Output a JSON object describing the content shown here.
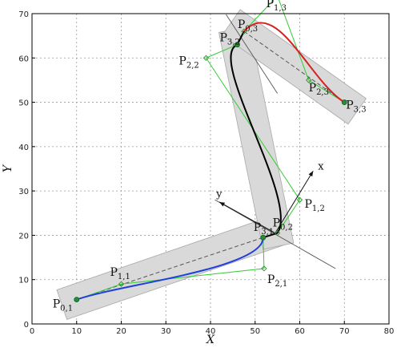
{
  "chart_data": {
    "type": "line",
    "title": "",
    "xlabel": "X",
    "ylabel": "Y",
    "xlim": [
      0,
      80
    ],
    "ylim": [
      0,
      70
    ],
    "xticks": [
      0,
      10,
      20,
      30,
      40,
      50,
      60,
      70,
      80
    ],
    "yticks": [
      0,
      10,
      20,
      30,
      40,
      50,
      60,
      70
    ],
    "grid": true,
    "colors": {
      "band": "#d9d9d9",
      "control_polygon": "#33cc33",
      "segment1": "#1f3fdc",
      "segment2": "#000000",
      "segment3": "#d42020",
      "chord": "#555555",
      "frame_lines": "#555555"
    },
    "bands": [
      {
        "name": "band-1",
        "centerline": [
          [
            10,
            5.5
          ],
          [
            52,
            20
          ]
        ],
        "half_width": 3.5
      },
      {
        "name": "band-2",
        "centerline": [
          [
            46,
            63
          ],
          [
            54.5,
            21
          ]
        ],
        "half_width": 3.5
      },
      {
        "name": "band-3",
        "centerline": [
          [
            47.5,
            66
          ],
          [
            70,
            50
          ]
        ],
        "half_width": 3.5
      }
    ],
    "segments": [
      {
        "name": "segment-1",
        "control_points": [
          [
            10,
            5.5
          ],
          [
            20,
            9
          ],
          [
            52,
            12.5
          ],
          [
            51.8,
            19.5
          ]
        ]
      },
      {
        "name": "segment-2",
        "control_points": [
          [
            55,
            20.5
          ],
          [
            60,
            28
          ],
          [
            39,
            60
          ],
          [
            46,
            63
          ]
        ]
      },
      {
        "name": "segment-3",
        "control_points": [
          [
            47.5,
            66
          ],
          [
            55,
            74
          ],
          [
            62,
            55
          ],
          [
            70,
            50
          ]
        ]
      }
    ],
    "chords": [
      [
        [
          10,
          5.5
        ],
        [
          51.8,
          19.5
        ]
      ],
      [
        [
          47.5,
          66
        ],
        [
          70,
          50
        ]
      ]
    ],
    "frame_lines": [
      [
        [
          43.5,
          69.8
        ],
        [
          55,
          52
        ]
      ],
      [
        [
          41,
          28
        ],
        [
          68,
          12.5
        ]
      ]
    ],
    "frame_axes": [
      {
        "name": "x-axis-arrow",
        "from": [
          54.5,
          20.5
        ],
        "to": [
          63,
          34.5
        ],
        "label": "x"
      },
      {
        "name": "y-axis-arrow",
        "from": [
          54.5,
          20.5
        ],
        "to": [
          42,
          27.5
        ],
        "label": "y"
      }
    ],
    "points": [
      {
        "name": "P0,1",
        "x": 10,
        "y": 5.5,
        "label": "P",
        "sub": "0,1",
        "marker": "dot"
      },
      {
        "name": "P1,1",
        "x": 20,
        "y": 9,
        "label": "P",
        "sub": "1,1",
        "marker": "diamond"
      },
      {
        "name": "P2,1",
        "x": 52,
        "y": 12.5,
        "label": "P",
        "sub": "2,1",
        "marker": "diamond"
      },
      {
        "name": "P3,1",
        "x": 51.8,
        "y": 19.5,
        "label": "P",
        "sub": "3,1",
        "marker": "dot"
      },
      {
        "name": "P0,2",
        "x": 55,
        "y": 20.5,
        "label": "P",
        "sub": "0,2",
        "marker": "diamond"
      },
      {
        "name": "P1,2",
        "x": 60,
        "y": 28,
        "label": "P",
        "sub": "1,2",
        "marker": "diamond"
      },
      {
        "name": "P2,2",
        "x": 39,
        "y": 60,
        "label": "P",
        "sub": "2,2",
        "marker": "diamond"
      },
      {
        "name": "P3,2",
        "x": 46,
        "y": 63,
        "label": "P",
        "sub": "3,2",
        "marker": "dot"
      },
      {
        "name": "P0,3",
        "x": 47.5,
        "y": 66,
        "label": "P",
        "sub": "0,3",
        "marker": "diamond"
      },
      {
        "name": "P1,3",
        "x": 55,
        "y": 74,
        "label": "P",
        "sub": "1,3",
        "marker": "diamond"
      },
      {
        "name": "P2,3",
        "x": 62,
        "y": 55,
        "label": "P",
        "sub": "2,3",
        "marker": "diamond"
      },
      {
        "name": "P3,3",
        "x": 70,
        "y": 50,
        "label": "P",
        "sub": "3,3",
        "marker": "dot"
      }
    ]
  }
}
